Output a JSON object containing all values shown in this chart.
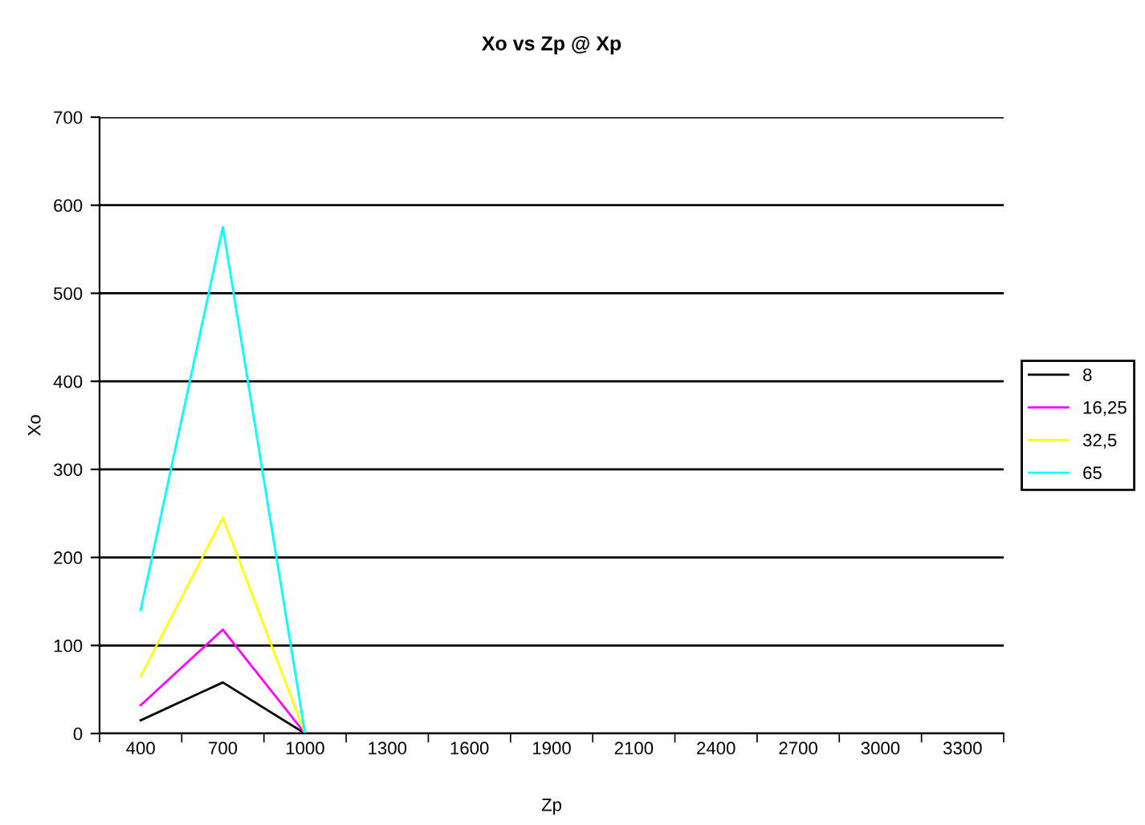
{
  "chart_data": {
    "type": "line",
    "title": "Xo vs Zp @ Xp",
    "xlabel": "Zp",
    "ylabel": "Xo",
    "categories": [
      "400",
      "700",
      "1000",
      "1300",
      "1600",
      "1900",
      "2100",
      "2400",
      "2700",
      "3000",
      "3300"
    ],
    "series": [
      {
        "name": "8",
        "color": "#000000",
        "values": [
          15,
          58,
          0,
          null,
          null,
          null,
          null,
          null,
          null,
          null,
          null
        ]
      },
      {
        "name": "16,25",
        "color": "#ff00ff",
        "values": [
          32,
          118,
          0,
          null,
          null,
          null,
          null,
          null,
          null,
          null,
          null
        ]
      },
      {
        "name": "32,5",
        "color": "#ffff00",
        "values": [
          65,
          245,
          0,
          null,
          null,
          null,
          null,
          null,
          null,
          null,
          null
        ]
      },
      {
        "name": "65",
        "color": "#00ffff",
        "values": [
          140,
          575,
          0,
          null,
          null,
          null,
          null,
          null,
          null,
          null,
          null
        ]
      }
    ],
    "ylim": [
      0,
      700
    ],
    "yticks": [
      0,
      100,
      200,
      300,
      400,
      500,
      600,
      700
    ],
    "grid": "y",
    "legend": "right"
  }
}
